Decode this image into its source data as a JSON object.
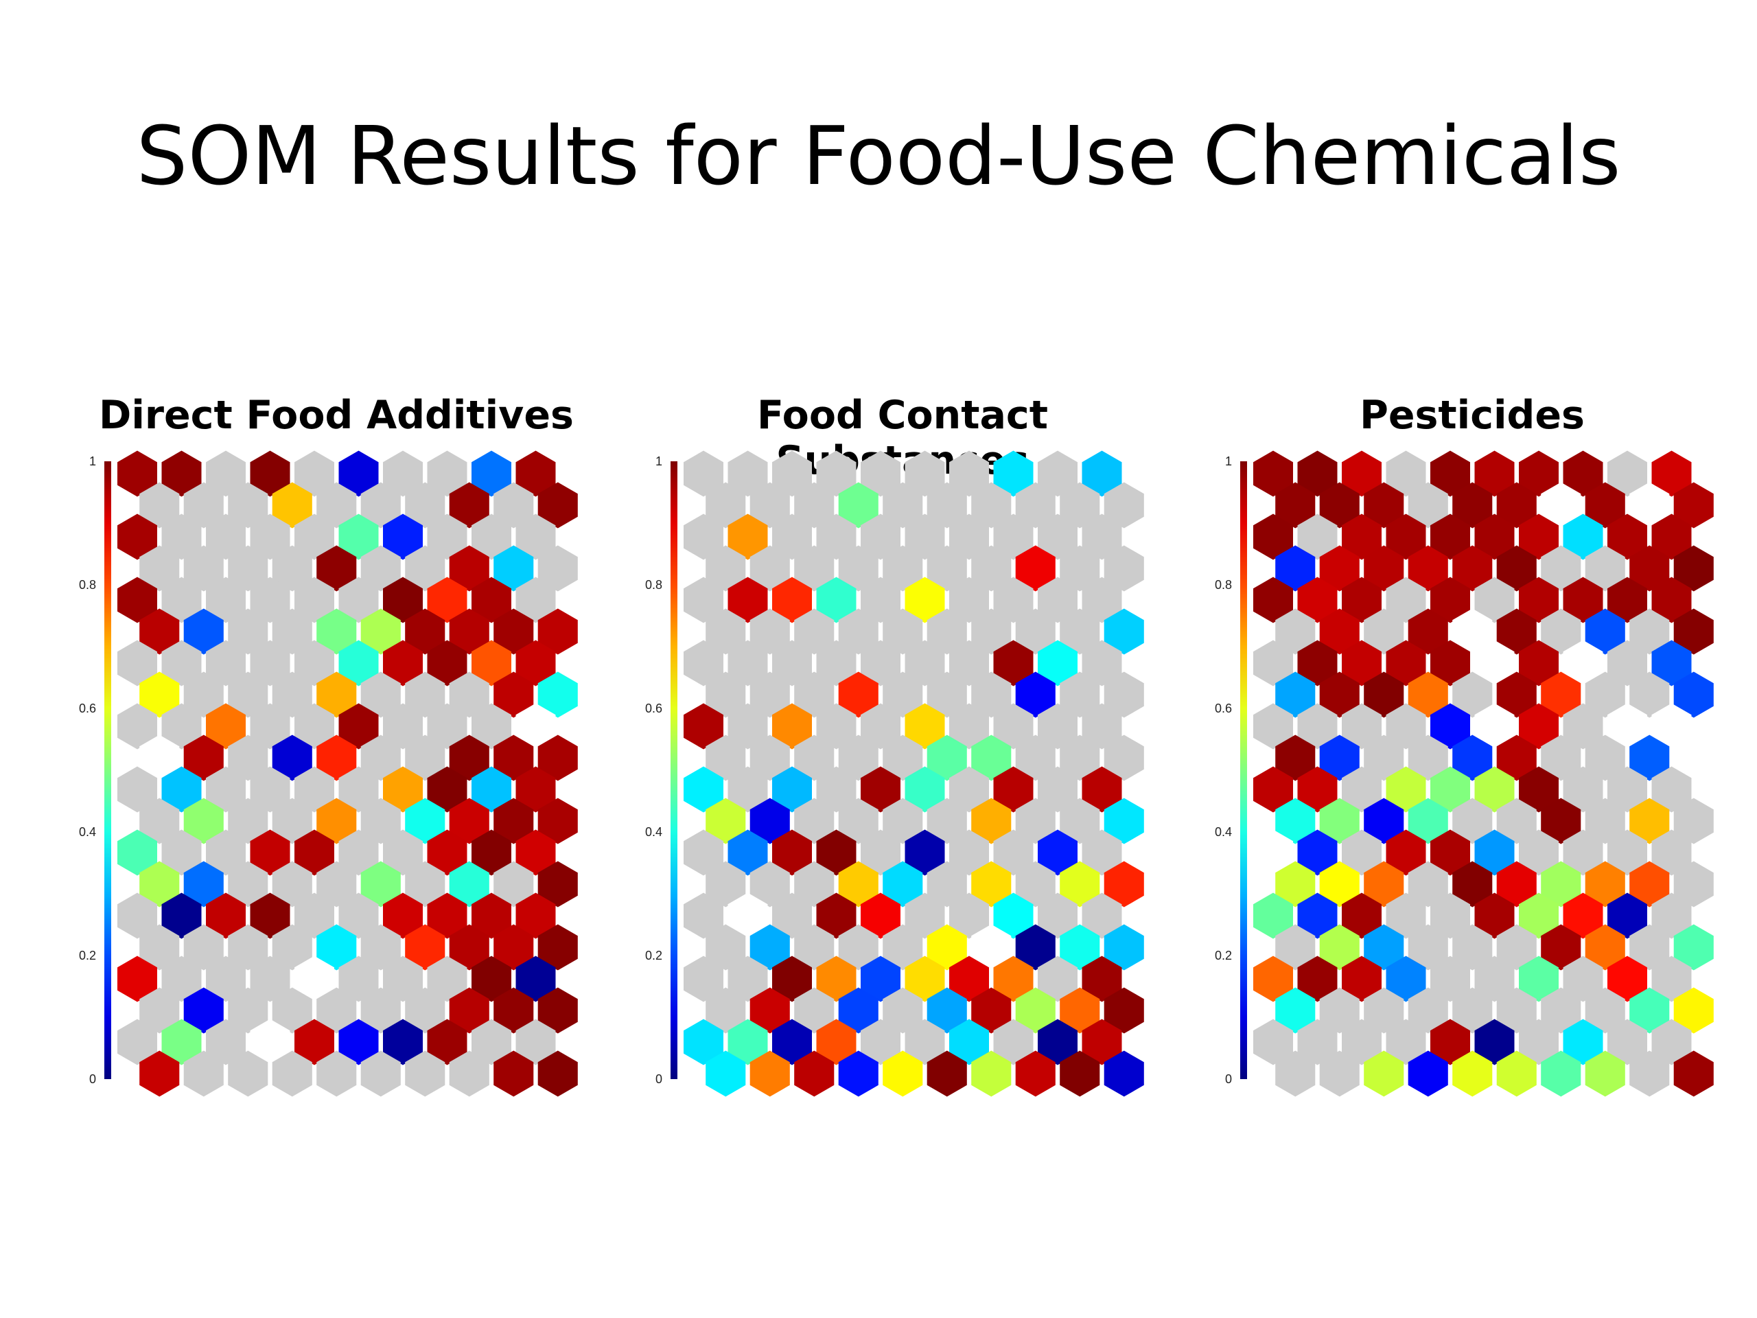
{
  "title": "SOM Results for Food-Use Chemicals",
  "colorbar_ticks": [
    "1",
    "0.8",
    "0.6",
    "0.4",
    "0.2",
    "0"
  ],
  "colors": {
    "empty_cell": "#cccccc",
    "zero_cell": "#ffffff",
    "colormap": "jet"
  },
  "chart_data": [
    {
      "type": "heatmap",
      "title": "Direct Food Additives",
      "grid": "hexagonal",
      "grid_size": [
        10,
        20
      ],
      "value_range": [
        0,
        1
      ],
      "colorbar": "jet",
      "grid_on": false
    },
    {
      "type": "heatmap",
      "title": "Food Contact Substances",
      "grid": "hexagonal",
      "grid_size": [
        10,
        20
      ],
      "value_range": [
        0,
        1
      ],
      "colorbar": "jet",
      "grid_on": false
    },
    {
      "type": "heatmap",
      "title": "Pesticides",
      "grid": "hexagonal",
      "grid_size": [
        10,
        20
      ],
      "value_range": [
        0,
        1
      ],
      "colorbar": "jet",
      "grid_on": false
    }
  ]
}
